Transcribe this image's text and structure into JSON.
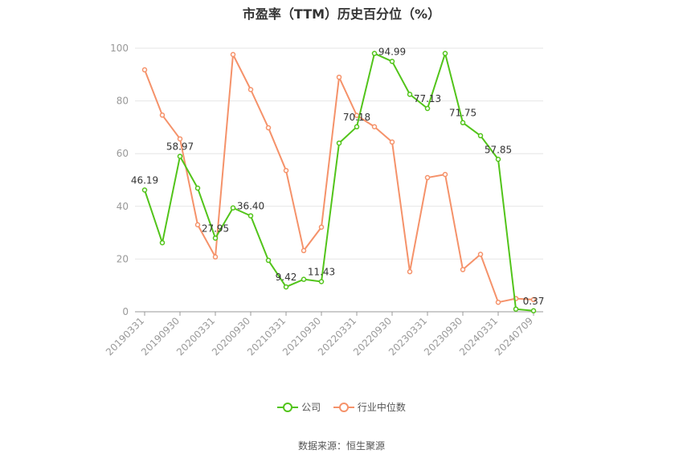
{
  "chart_data": {
    "type": "line",
    "title": "市盈率（TTM）历史百分位（%）",
    "xlabel": "",
    "ylabel": "",
    "ylim": [
      0,
      100
    ],
    "yticks": [
      0,
      20,
      40,
      60,
      80,
      100
    ],
    "x": [
      "20190331",
      "20190630",
      "20190930",
      "20191231",
      "20200331",
      "20200630",
      "20200930",
      "20201231",
      "20210331",
      "20210630",
      "20210930",
      "20211231",
      "20220331",
      "20220630",
      "20220930",
      "20221231",
      "20230331",
      "20230630",
      "20230930",
      "20231231",
      "20240331",
      "20240630",
      "20240709"
    ],
    "xtick_labels": [
      "20190331",
      "20190930",
      "20200331",
      "20200930",
      "20210331",
      "20210930",
      "20220331",
      "20220930",
      "20230331",
      "20230930",
      "20240331",
      "20240709"
    ],
    "grid": true,
    "legend_position": "bottom",
    "series": [
      {
        "name": "公司",
        "color": "#52c41a",
        "values": [
          46.19,
          26.2,
          58.97,
          46.9,
          27.95,
          39.4,
          36.4,
          19.5,
          9.42,
          12.3,
          11.43,
          64.0,
          70.18,
          98.0,
          94.99,
          82.5,
          77.13,
          98.0,
          71.75,
          66.8,
          57.85,
          1.0,
          0.37
        ],
        "labels": {
          "0": "46.19",
          "2": "58.97",
          "4": "27.95",
          "6": "36.40",
          "8": "9.42",
          "10": "11.43",
          "12": "70.18",
          "14": "94.99",
          "16": "77.13",
          "18": "71.75",
          "20": "57.85",
          "22": "0.37"
        }
      },
      {
        "name": "行业中位数",
        "color": "#f5926a",
        "values": [
          91.8,
          74.6,
          65.6,
          33.0,
          20.8,
          97.6,
          84.3,
          69.8,
          53.6,
          23.2,
          32.1,
          89.0,
          74.5,
          70.2,
          64.4,
          15.2,
          50.9,
          52.1,
          16.0,
          21.8,
          3.6,
          5.0,
          4.6
        ]
      }
    ]
  },
  "source_text": "数据来源：恒生聚源"
}
